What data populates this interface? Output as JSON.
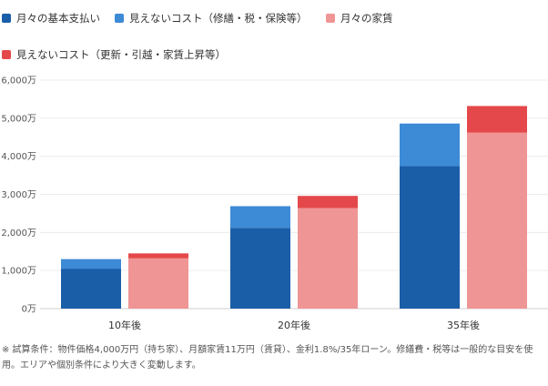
{
  "legend": {
    "items": [
      {
        "label": "月々の基本支払い",
        "color": "#1a5ea8"
      },
      {
        "label": "見えないコスト（修繕・税・保険等）",
        "color": "#3d8ad6"
      },
      {
        "label": "月々の家賃",
        "color": "#f09595"
      },
      {
        "label": "見えないコスト（更新・引越・家賃上昇等）",
        "color": "#e5484a"
      }
    ]
  },
  "chart_data": {
    "type": "bar",
    "stacked": true,
    "grouped": true,
    "categories": [
      "10年後",
      "20年後",
      "35年後"
    ],
    "y_ticks": [
      "0万",
      "1,000万",
      "2,000万",
      "3,000万",
      "4,000万",
      "5,000万",
      "6,000万"
    ],
    "ylim": [
      0,
      6000
    ],
    "unit": "万",
    "grid": true,
    "legend_position": "top",
    "groups": [
      {
        "stack": "own",
        "series": [
          {
            "name": "月々の基本支払い",
            "color": "#1a5ea8",
            "values": [
              1050,
              2120,
              3740
            ]
          },
          {
            "name": "見えないコスト（修繕・税・保険等）",
            "color": "#3d8ad6",
            "values": [
              250,
              570,
              1120
            ]
          }
        ]
      },
      {
        "stack": "rent",
        "series": [
          {
            "name": "月々の家賃",
            "color": "#f09595",
            "values": [
              1320,
              2640,
              4620
            ]
          },
          {
            "name": "見えないコスト（更新・引越・家賃上昇等）",
            "color": "#e5484a",
            "values": [
              130,
              320,
              700
            ]
          }
        ]
      }
    ]
  },
  "note": "※ 試算条件：物件価格4,000万円（持ち家）、月額家賃11万円（賃貸）、金利1.8%/35年ローン。修繕費・税等は一般的な目安を使用。エリアや個別条件により大きく変動します。"
}
